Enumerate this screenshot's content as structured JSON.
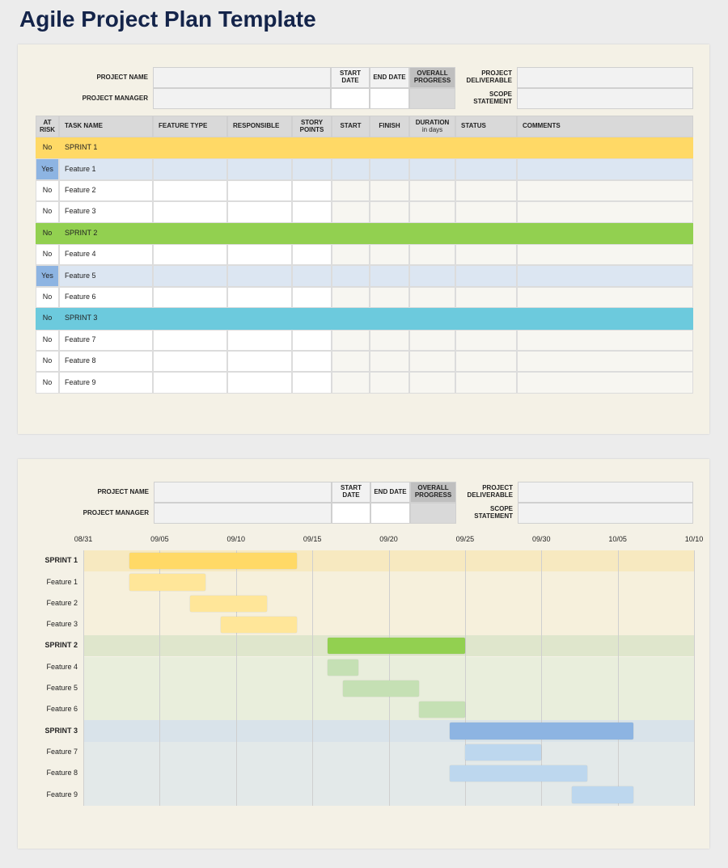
{
  "title": "Agile Project Plan Template",
  "header": {
    "project_name": "PROJECT NAME",
    "project_manager": "PROJECT MANAGER",
    "start_date": "START DATE",
    "end_date": "END DATE",
    "overall_progress": "OVERALL PROGRESS",
    "project_deliverable": "PROJECT DELIVERABLE",
    "scope_statement": "SCOPE STATEMENT"
  },
  "table": {
    "columns": {
      "at_risk": "AT RISK",
      "task_name": "TASK NAME",
      "feature_type": "FEATURE TYPE",
      "responsible": "RESPONSIBLE",
      "story_points": "STORY POINTS",
      "start": "START",
      "finish": "FINISH",
      "duration": "DURATION",
      "duration_unit": "in days",
      "status": "STATUS",
      "comments": "COMMENTS"
    },
    "sprints": [
      {
        "at_risk": "No",
        "task": "SPRINT 1",
        "features": [
          {
            "at_risk": "Yes",
            "task": "Feature 1"
          },
          {
            "at_risk": "No",
            "task": "Feature 2"
          },
          {
            "at_risk": "No",
            "task": "Feature 3"
          }
        ]
      },
      {
        "at_risk": "No",
        "task": "SPRINT 2",
        "features": [
          {
            "at_risk": "No",
            "task": "Feature 4"
          },
          {
            "at_risk": "Yes",
            "task": "Feature 5"
          },
          {
            "at_risk": "No",
            "task": "Feature 6"
          }
        ]
      },
      {
        "at_risk": "No",
        "task": "SPRINT 3",
        "features": [
          {
            "at_risk": "No",
            "task": "Feature 7"
          },
          {
            "at_risk": "No",
            "task": "Feature 8"
          },
          {
            "at_risk": "No",
            "task": "Feature 9"
          }
        ]
      }
    ]
  },
  "gantt": {
    "xlim": [
      "08/31",
      "10/10"
    ],
    "xticks": [
      "08/31",
      "09/05",
      "09/10",
      "09/15",
      "09/20",
      "09/25",
      "09/30",
      "10/05",
      "10/10"
    ],
    "sprints": [
      {
        "label": "SPRINT 1",
        "start": "09/03",
        "end": "09/14",
        "color": "#ffd966",
        "features": [
          {
            "label": "Feature 1",
            "start": "09/03",
            "end": "09/08",
            "color": "#ffe699"
          },
          {
            "label": "Feature 2",
            "start": "09/07",
            "end": "09/12",
            "color": "#ffe699"
          },
          {
            "label": "Feature 3",
            "start": "09/09",
            "end": "09/14",
            "color": "#ffe699"
          }
        ]
      },
      {
        "label": "SPRINT 2",
        "start": "09/16",
        "end": "09/25",
        "color": "#92d050",
        "features": [
          {
            "label": "Feature 4",
            "start": "09/16",
            "end": "09/18",
            "color": "#c5e0b4"
          },
          {
            "label": "Feature 5",
            "start": "09/17",
            "end": "09/22",
            "color": "#c5e0b4"
          },
          {
            "label": "Feature 6",
            "start": "09/22",
            "end": "09/25",
            "color": "#c5e0b4"
          }
        ]
      },
      {
        "label": "SPRINT 3",
        "start": "09/24",
        "end": "10/06",
        "color": "#8db4e2",
        "features": [
          {
            "label": "Feature 7",
            "start": "09/25",
            "end": "09/30",
            "color": "#bdd7ee"
          },
          {
            "label": "Feature 8",
            "start": "09/24",
            "end": "10/03",
            "color": "#bdd7ee"
          },
          {
            "label": "Feature 9",
            "start": "10/02",
            "end": "10/06",
            "color": "#bdd7ee"
          }
        ]
      }
    ]
  }
}
